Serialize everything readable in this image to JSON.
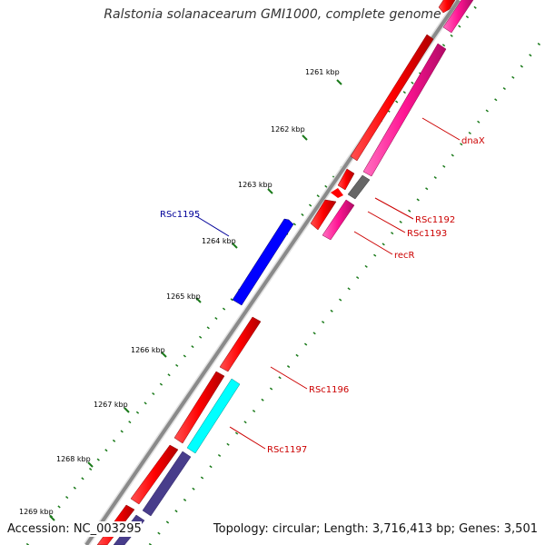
{
  "title": "Ralstonia solanacearum GMI1000, complete genome",
  "footer": {
    "accession": "Accession: NC_003295",
    "summary": "Topology: circular; Length: 3,716,413 bp; Genes: 3,501"
  },
  "ruler": {
    "ticks": [
      {
        "label": "1261 kbp",
        "pos": 1261
      },
      {
        "label": "1262 kbp",
        "pos": 1262
      },
      {
        "label": "1263 kbp",
        "pos": 1263
      },
      {
        "label": "1264 kbp",
        "pos": 1264
      },
      {
        "label": "1265 kbp",
        "pos": 1265
      },
      {
        "label": "1266 kbp",
        "pos": 1266
      },
      {
        "label": "1267 kbp",
        "pos": 1267
      },
      {
        "label": "1268 kbp",
        "pos": 1268
      },
      {
        "label": "1269 kbp",
        "pos": 1269
      }
    ]
  },
  "gene_labels": [
    {
      "name": "dnaX",
      "color": "#cc0000"
    },
    {
      "name": "RSc1192",
      "color": "#cc0000"
    },
    {
      "name": "RSc1193",
      "color": "#cc0000"
    },
    {
      "name": "recR",
      "color": "#cc0000"
    },
    {
      "name": "RSc1195",
      "color": "#000099"
    },
    {
      "name": "RSc1196",
      "color": "#cc0000"
    },
    {
      "name": "RSc1197",
      "color": "#cc0000"
    }
  ],
  "colors": {
    "cds_red": "#ff0000",
    "cds_pink": "#ff1493",
    "cds_blue": "#0000ff",
    "cds_cyan": "#00ffff",
    "cds_gray": "#666666",
    "cds_slate": "#483d8b",
    "backbone": "#808080",
    "gc_dots": "#1a7a1a"
  }
}
